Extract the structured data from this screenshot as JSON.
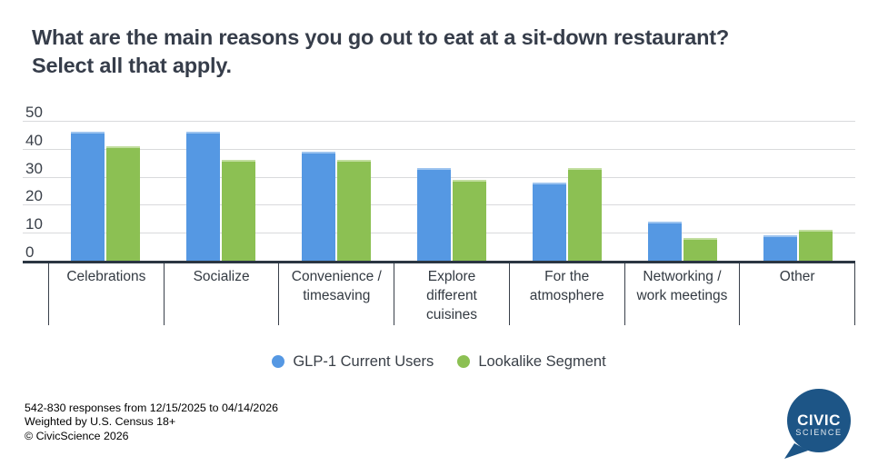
{
  "title": {
    "line1": "What are the main reasons you go out to eat at a sit-down restaurant?",
    "line2": "Select all that apply."
  },
  "chart_data": {
    "type": "bar",
    "title": "What are the main reasons you go out to eat at a sit-down restaurant? Select all that apply.",
    "categories": [
      "Celebrations",
      "Socialize",
      "Convenience / timesaving",
      "Explore different cuisines",
      "For the atmosphere",
      "Networking / work meetings",
      "Other"
    ],
    "series": [
      {
        "name": "GLP-1 Current Users",
        "color": "#5598E3",
        "values": [
          46,
          46,
          39,
          33,
          28,
          14,
          9
        ]
      },
      {
        "name": "Lookalike Segment",
        "color": "#8CC053",
        "values": [
          41,
          36,
          36,
          29,
          33,
          8,
          11
        ]
      }
    ],
    "xlabel": "",
    "ylabel": "",
    "ylim": [
      0,
      50
    ],
    "yticks": [
      0,
      10,
      20,
      30,
      40,
      50
    ],
    "grid": "horizontal",
    "legend_position": "bottom"
  },
  "footer": {
    "line1": "542-830 responses from 12/15/2025 to 04/14/2026",
    "line2": "Weighted by U.S. Census 18+",
    "line3": "© CivicScience 2026"
  },
  "logo": {
    "line1": "CIVIC",
    "line2": "SCIENCE",
    "color": "#1D5586"
  }
}
